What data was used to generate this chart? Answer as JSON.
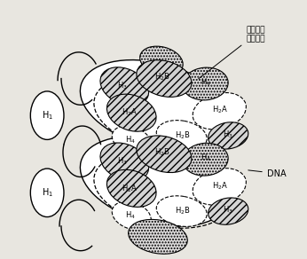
{
  "fig_width": 3.46,
  "fig_height": 2.92,
  "dpi": 100,
  "bg_color": "#e8e6e0",
  "annotations": {
    "label_octamer": "八聚体组\n蛋白核心",
    "label_DNA": "DNA"
  }
}
